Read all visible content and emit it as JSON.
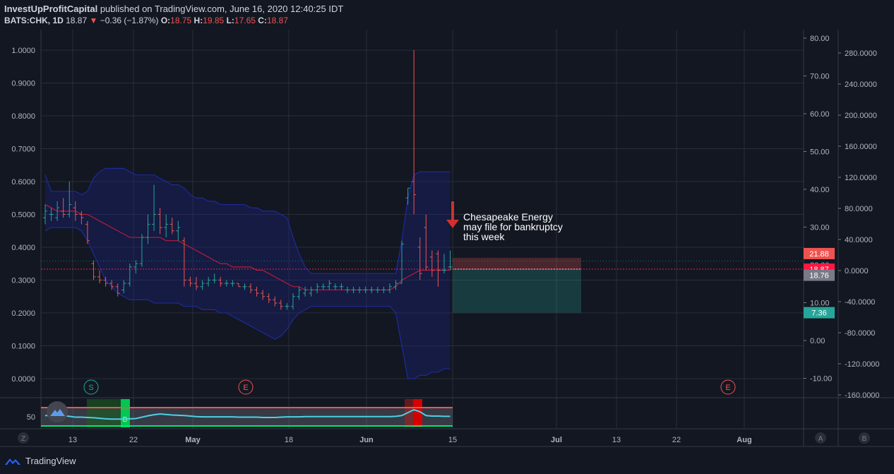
{
  "header": {
    "publisher": "InvestUpProfitCapital",
    "published_text": "published on TradingView.com, June 16, 2020 12:40:25 IDT",
    "symbol": "BATS:CHK, 1D",
    "last": "18.87",
    "arrow": "▼",
    "change": "−0.36 (−1.87%)",
    "o_label": "O:",
    "o_val": "18.75",
    "h_label": "H:",
    "h_val": "19.85",
    "l_label": "L:",
    "l_val": "17.65",
    "c_label": "C:",
    "c_val": "18.87"
  },
  "footer": {
    "brand": "TradingView"
  },
  "colors": {
    "background": "#131722",
    "up": "#26a69a",
    "down": "#ef5350",
    "band": "#1a237e",
    "midline": "#b71c3c",
    "target": "#26a69a",
    "stop": "#ef5350"
  },
  "chart_data": {
    "type": "ohlc",
    "x_labels": [
      "13",
      "22",
      "May",
      "18",
      "Jun",
      "15",
      "Jul",
      "13",
      "22",
      "Aug"
    ],
    "left_axis": {
      "ticks": [
        "1.0000",
        "0.9000",
        "0.8000",
        "0.7000",
        "0.6000",
        "0.5000",
        "0.4000",
        "0.3000",
        "0.2000",
        "0.1000",
        "0.0000"
      ],
      "ylim": [
        0,
        1
      ]
    },
    "price_axis": {
      "ticks": [
        "80.00",
        "70.00",
        "60.00",
        "50.00",
        "40.00",
        "30.00",
        "20.00",
        "10.00",
        "0.00",
        "-10.00"
      ],
      "ylim": [
        -10,
        80
      ]
    },
    "right_axis": {
      "ticks": [
        "280.0000",
        "240.0000",
        "200.0000",
        "160.0000",
        "120.0000",
        "80.0000",
        "40.0000",
        "0.0000",
        "-40.0000",
        "-80.0000",
        "-120.0000",
        "-160.0000"
      ],
      "ylim": [
        -160,
        280
      ]
    },
    "price_labels": [
      {
        "text": "21.88",
        "value": 21.88,
        "color": "#ef5350"
      },
      {
        "text": "18.87",
        "value": 18.87,
        "color": "#ff1744"
      },
      {
        "text": "18.76",
        "value": 18.76,
        "color": "#787b86"
      },
      {
        "text": "7.36",
        "value": 7.36,
        "color": "#26a69a"
      }
    ],
    "bars": [
      {
        "o": 0.49,
        "h": 0.53,
        "l": 0.47,
        "c": 0.51
      },
      {
        "o": 0.5,
        "h": 0.52,
        "l": 0.48,
        "c": 0.5
      },
      {
        "o": 0.49,
        "h": 0.54,
        "l": 0.48,
        "c": 0.52
      },
      {
        "o": 0.51,
        "h": 0.55,
        "l": 0.49,
        "c": 0.5
      },
      {
        "o": 0.5,
        "h": 0.6,
        "l": 0.49,
        "c": 0.53
      },
      {
        "o": 0.52,
        "h": 0.54,
        "l": 0.48,
        "c": 0.5
      },
      {
        "o": 0.5,
        "h": 0.51,
        "l": 0.47,
        "c": 0.49
      },
      {
        "o": 0.47,
        "h": 0.48,
        "l": 0.41,
        "c": 0.42
      },
      {
        "o": 0.35,
        "h": 0.36,
        "l": 0.3,
        "c": 0.31
      },
      {
        "o": 0.31,
        "h": 0.33,
        "l": 0.29,
        "c": 0.3
      },
      {
        "o": 0.3,
        "h": 0.31,
        "l": 0.28,
        "c": 0.29
      },
      {
        "o": 0.29,
        "h": 0.3,
        "l": 0.27,
        "c": 0.28
      },
      {
        "o": 0.28,
        "h": 0.29,
        "l": 0.25,
        "c": 0.26
      },
      {
        "o": 0.27,
        "h": 0.3,
        "l": 0.26,
        "c": 0.29
      },
      {
        "o": 0.29,
        "h": 0.35,
        "l": 0.28,
        "c": 0.34
      },
      {
        "o": 0.34,
        "h": 0.36,
        "l": 0.32,
        "c": 0.35
      },
      {
        "o": 0.35,
        "h": 0.44,
        "l": 0.34,
        "c": 0.43
      },
      {
        "o": 0.43,
        "h": 0.5,
        "l": 0.41,
        "c": 0.47
      },
      {
        "o": 0.47,
        "h": 0.59,
        "l": 0.45,
        "c": 0.5
      },
      {
        "o": 0.5,
        "h": 0.52,
        "l": 0.44,
        "c": 0.46
      },
      {
        "o": 0.46,
        "h": 0.5,
        "l": 0.43,
        "c": 0.47
      },
      {
        "o": 0.47,
        "h": 0.49,
        "l": 0.44,
        "c": 0.45
      },
      {
        "o": 0.45,
        "h": 0.48,
        "l": 0.42,
        "c": 0.46
      },
      {
        "o": 0.42,
        "h": 0.43,
        "l": 0.28,
        "c": 0.3
      },
      {
        "o": 0.3,
        "h": 0.31,
        "l": 0.28,
        "c": 0.29
      },
      {
        "o": 0.29,
        "h": 0.31,
        "l": 0.27,
        "c": 0.28
      },
      {
        "o": 0.28,
        "h": 0.3,
        "l": 0.27,
        "c": 0.29
      },
      {
        "o": 0.29,
        "h": 0.31,
        "l": 0.28,
        "c": 0.3
      },
      {
        "o": 0.3,
        "h": 0.32,
        "l": 0.29,
        "c": 0.3
      },
      {
        "o": 0.3,
        "h": 0.31,
        "l": 0.28,
        "c": 0.29
      },
      {
        "o": 0.29,
        "h": 0.3,
        "l": 0.28,
        "c": 0.29
      },
      {
        "o": 0.29,
        "h": 0.3,
        "l": 0.28,
        "c": 0.29
      },
      {
        "o": 0.29,
        "h": 0.29,
        "l": 0.28,
        "c": 0.28
      },
      {
        "o": 0.28,
        "h": 0.29,
        "l": 0.27,
        "c": 0.28
      },
      {
        "o": 0.28,
        "h": 0.29,
        "l": 0.26,
        "c": 0.27
      },
      {
        "o": 0.27,
        "h": 0.28,
        "l": 0.25,
        "c": 0.26
      },
      {
        "o": 0.26,
        "h": 0.27,
        "l": 0.24,
        "c": 0.25
      },
      {
        "o": 0.25,
        "h": 0.26,
        "l": 0.23,
        "c": 0.24
      },
      {
        "o": 0.24,
        "h": 0.25,
        "l": 0.22,
        "c": 0.23
      },
      {
        "o": 0.23,
        "h": 0.24,
        "l": 0.21,
        "c": 0.22
      },
      {
        "o": 0.22,
        "h": 0.23,
        "l": 0.21,
        "c": 0.22
      },
      {
        "o": 0.22,
        "h": 0.26,
        "l": 0.21,
        "c": 0.25
      },
      {
        "o": 0.25,
        "h": 0.28,
        "l": 0.24,
        "c": 0.27
      },
      {
        "o": 0.26,
        "h": 0.28,
        "l": 0.25,
        "c": 0.27
      },
      {
        "o": 0.26,
        "h": 0.28,
        "l": 0.25,
        "c": 0.27
      },
      {
        "o": 0.27,
        "h": 0.29,
        "l": 0.26,
        "c": 0.28
      },
      {
        "o": 0.28,
        "h": 0.29,
        "l": 0.27,
        "c": 0.28
      },
      {
        "o": 0.28,
        "h": 0.3,
        "l": 0.27,
        "c": 0.29
      },
      {
        "o": 0.28,
        "h": 0.29,
        "l": 0.27,
        "c": 0.28
      },
      {
        "o": 0.28,
        "h": 0.29,
        "l": 0.27,
        "c": 0.28
      },
      {
        "o": 0.27,
        "h": 0.28,
        "l": 0.26,
        "c": 0.27
      },
      {
        "o": 0.27,
        "h": 0.28,
        "l": 0.26,
        "c": 0.27
      },
      {
        "o": 0.27,
        "h": 0.28,
        "l": 0.26,
        "c": 0.27
      },
      {
        "o": 0.27,
        "h": 0.28,
        "l": 0.26,
        "c": 0.27
      },
      {
        "o": 0.27,
        "h": 0.28,
        "l": 0.26,
        "c": 0.27
      },
      {
        "o": 0.27,
        "h": 0.28,
        "l": 0.26,
        "c": 0.27
      },
      {
        "o": 0.27,
        "h": 0.28,
        "l": 0.26,
        "c": 0.27
      },
      {
        "o": 0.27,
        "h": 0.29,
        "l": 0.26,
        "c": 0.28
      },
      {
        "o": 0.28,
        "h": 0.3,
        "l": 0.27,
        "c": 0.29
      },
      {
        "o": 0.29,
        "h": 0.42,
        "l": 0.29,
        "c": 0.41
      },
      {
        "o": 0.55,
        "h": 0.58,
        "l": 0.53,
        "c": 0.58
      },
      {
        "o": 0.6,
        "h": 1.0,
        "l": 0.5,
        "c": 0.56
      },
      {
        "o": 0.4,
        "h": 0.43,
        "l": 0.3,
        "c": 0.32
      },
      {
        "o": 0.46,
        "h": 0.5,
        "l": 0.33,
        "c": 0.34
      },
      {
        "o": 0.37,
        "h": 0.39,
        "l": 0.31,
        "c": 0.33
      },
      {
        "o": 0.38,
        "h": 0.39,
        "l": 0.28,
        "c": 0.33
      },
      {
        "o": 0.33,
        "h": 0.38,
        "l": 0.32,
        "c": 0.33
      },
      {
        "o": 0.34,
        "h": 0.39,
        "l": 0.33,
        "c": 0.34
      }
    ],
    "bb_upper": [
      0.62,
      0.57,
      0.57,
      0.57,
      0.57,
      0.57,
      0.56,
      0.57,
      0.61,
      0.63,
      0.64,
      0.64,
      0.64,
      0.64,
      0.63,
      0.62,
      0.62,
      0.62,
      0.62,
      0.61,
      0.6,
      0.59,
      0.59,
      0.58,
      0.56,
      0.55,
      0.55,
      0.54,
      0.54,
      0.53,
      0.53,
      0.53,
      0.53,
      0.53,
      0.52,
      0.52,
      0.51,
      0.51,
      0.51,
      0.5,
      0.49,
      0.43,
      0.38,
      0.34,
      0.32,
      0.32,
      0.32,
      0.32,
      0.32,
      0.32,
      0.32,
      0.32,
      0.32,
      0.32,
      0.32,
      0.32,
      0.32,
      0.32,
      0.32,
      0.42,
      0.55,
      0.62,
      0.63,
      0.63,
      0.63,
      0.63,
      0.63,
      0.63
    ],
    "bb_mid": [
      0.53,
      0.52,
      0.51,
      0.51,
      0.51,
      0.51,
      0.5,
      0.5,
      0.49,
      0.48,
      0.47,
      0.46,
      0.45,
      0.44,
      0.43,
      0.43,
      0.43,
      0.43,
      0.43,
      0.43,
      0.42,
      0.42,
      0.42,
      0.41,
      0.4,
      0.39,
      0.38,
      0.37,
      0.36,
      0.35,
      0.35,
      0.34,
      0.34,
      0.34,
      0.34,
      0.33,
      0.33,
      0.32,
      0.31,
      0.3,
      0.29,
      0.28,
      0.28,
      0.27,
      0.27,
      0.27,
      0.27,
      0.27,
      0.27,
      0.27,
      0.27,
      0.27,
      0.27,
      0.27,
      0.27,
      0.27,
      0.27,
      0.27,
      0.28,
      0.3,
      0.31,
      0.32,
      0.33,
      0.33,
      0.33,
      0.33,
      0.33,
      0.33
    ],
    "bb_lower": [
      0.45,
      0.46,
      0.46,
      0.46,
      0.46,
      0.46,
      0.45,
      0.42,
      0.38,
      0.34,
      0.3,
      0.28,
      0.26,
      0.25,
      0.24,
      0.24,
      0.24,
      0.24,
      0.23,
      0.23,
      0.23,
      0.23,
      0.23,
      0.22,
      0.22,
      0.22,
      0.21,
      0.21,
      0.21,
      0.2,
      0.2,
      0.19,
      0.18,
      0.17,
      0.16,
      0.15,
      0.14,
      0.13,
      0.12,
      0.13,
      0.15,
      0.18,
      0.2,
      0.21,
      0.22,
      0.22,
      0.22,
      0.22,
      0.22,
      0.22,
      0.22,
      0.22,
      0.22,
      0.22,
      0.22,
      0.22,
      0.22,
      0.22,
      0.2,
      0.1,
      0.0,
      0.0,
      0.01,
      0.01,
      0.02,
      0.02,
      0.03,
      0.03
    ],
    "annotation": {
      "lines": [
        "Chesapeake Energy",
        "may file for bankruptcy",
        "this week"
      ]
    },
    "position": {
      "entry": 18.87,
      "stop": 21.88,
      "target": 7.36
    },
    "markers": [
      {
        "text": "S",
        "color": "#26a69a"
      },
      {
        "text": "E",
        "color": "#ef5350"
      },
      {
        "text": "E",
        "color": "#ef5350"
      }
    ],
    "oscillator": {
      "tick": "50",
      "values": [
        44,
        44,
        44,
        43,
        41,
        38,
        38,
        37,
        36,
        34,
        32,
        31,
        31,
        31,
        32,
        33,
        38,
        43,
        47,
        50,
        48,
        46,
        45,
        44,
        42,
        40,
        39,
        39,
        39,
        39,
        39,
        39,
        38,
        38,
        38,
        38,
        37,
        37,
        37,
        38,
        39,
        39,
        39,
        40,
        40,
        40,
        40,
        40,
        40,
        40,
        40,
        40,
        40,
        40,
        40,
        40,
        40,
        40,
        41,
        44,
        55,
        66,
        58,
        44,
        42,
        42,
        41,
        41
      ],
      "zone_labels": [
        "B"
      ]
    },
    "bottom_buttons": {
      "left": "Z",
      "right_a": "A",
      "right_b": "B"
    }
  }
}
